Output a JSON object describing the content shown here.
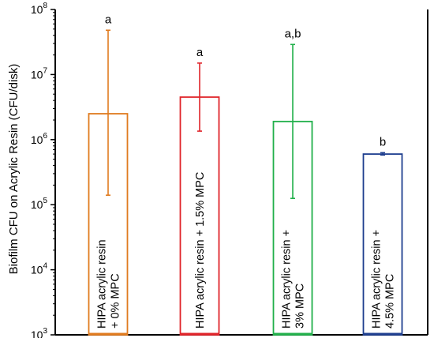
{
  "chart_data": {
    "type": "bar",
    "ylabel": "Biofilm CFU on Acrylic Resin (CFU/disk)",
    "yscale": "log",
    "ylim": [
      1000,
      100000000
    ],
    "yticks": [
      {
        "value": 1000,
        "base": "10",
        "exp": "3"
      },
      {
        "value": 10000,
        "base": "10",
        "exp": "4"
      },
      {
        "value": 100000,
        "base": "10",
        "exp": "5"
      },
      {
        "value": 1000000,
        "base": "10",
        "exp": "6"
      },
      {
        "value": 10000000,
        "base": "10",
        "exp": "7"
      },
      {
        "value": 100000000,
        "base": "10",
        "exp": "8"
      }
    ],
    "grid": false,
    "bars": [
      {
        "label_lines": [
          "HIPA acrylic resin",
          "+ 0% MPC"
        ],
        "value": 2500000,
        "err_low": 140000,
        "err_high": 48000000,
        "significance": "a",
        "color": "#e07b1f"
      },
      {
        "label_lines": [
          "HIPA acrylic resin + 1.5% MPC"
        ],
        "value": 4500000,
        "err_low": 1350000,
        "err_high": 15000000,
        "significance": "a",
        "color": "#e0242a"
      },
      {
        "label_lines": [
          "HIPA acrylic resin +",
          "3% MPC"
        ],
        "value": 1900000,
        "err_low": 125000,
        "err_high": 29000000,
        "significance": "a,b",
        "color": "#22b04b"
      },
      {
        "label_lines": [
          "HIPA acrylic resin +",
          "4.5% MPC"
        ],
        "value": 600000,
        "err_low": 580000,
        "err_high": 630000,
        "significance": "b",
        "color": "#1f3f8f"
      }
    ]
  }
}
